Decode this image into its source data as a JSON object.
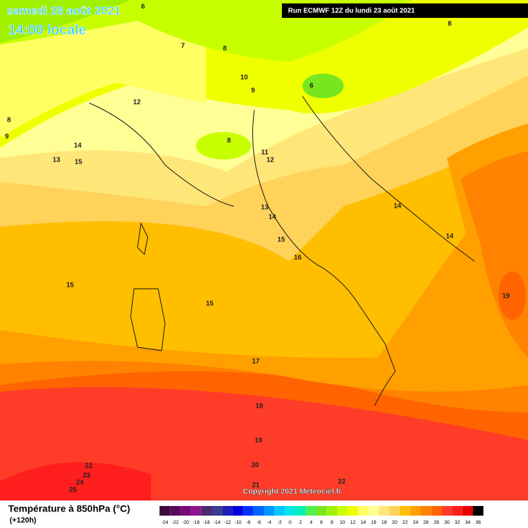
{
  "header": {
    "date": "samedi 28 août 2021",
    "time": "14:00 locale",
    "run": "Run ECMWF 12Z du lundi 23 août 2021"
  },
  "contour_labels": [
    6,
    8,
    7,
    8,
    10,
    9,
    6,
    12,
    8,
    9,
    14,
    8,
    11,
    12,
    13,
    15,
    14,
    13,
    14,
    15,
    14,
    16,
    15,
    15,
    19,
    17,
    18,
    19,
    20,
    22,
    23,
    24,
    25,
    21,
    22
  ],
  "copyright": "Copyright 2021 Meteociel.fr",
  "legend": {
    "title": "Température à 850hPa (°C)",
    "lead": "(+120h)",
    "ticks": [
      -24,
      -22,
      -20,
      -18,
      -16,
      -14,
      -12,
      -10,
      -8,
      -6,
      -4,
      -2,
      0,
      2,
      4,
      6,
      8,
      10,
      12,
      14,
      16,
      18,
      20,
      22,
      24,
      26,
      28,
      30,
      32,
      34,
      36
    ],
    "colors": [
      "#3c0a3c",
      "#5a0a5a",
      "#780a78",
      "#8c148c",
      "#4b2a6e",
      "#3c3c8c",
      "#1e1eb4",
      "#0000dc",
      "#0032ff",
      "#0064ff",
      "#0096ff",
      "#00c8ff",
      "#00e6e6",
      "#00f0b4",
      "#50f050",
      "#78e61e",
      "#a0f000",
      "#c8ff00",
      "#f0ff00",
      "#ffff64",
      "#ffff96",
      "#ffe678",
      "#ffd25a",
      "#ffbe00",
      "#ffa000",
      "#ff8200",
      "#ff6400",
      "#ff3c28",
      "#ff1e1e",
      "#e60000",
      "#000000"
    ]
  }
}
